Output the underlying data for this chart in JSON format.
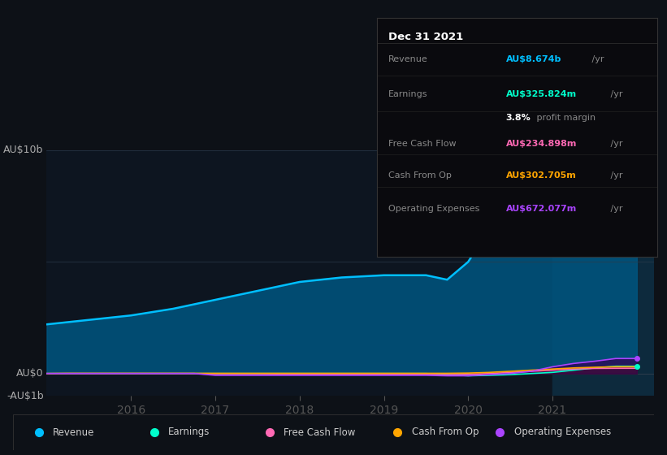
{
  "bg_color": "#0d1117",
  "chart_bg": "#0d1520",
  "grid_color": "#2a3a4a",
  "x_years": [
    2015.0,
    2015.25,
    2015.5,
    2015.75,
    2016.0,
    2016.25,
    2016.5,
    2016.75,
    2017.0,
    2017.25,
    2017.5,
    2017.75,
    2018.0,
    2018.25,
    2018.5,
    2018.75,
    2019.0,
    2019.25,
    2019.5,
    2019.75,
    2020.0,
    2020.25,
    2020.5,
    2020.75,
    2021.0,
    2021.25,
    2021.5,
    2021.75,
    2022.0
  ],
  "revenue": [
    2.2,
    2.3,
    2.4,
    2.5,
    2.6,
    2.75,
    2.9,
    3.1,
    3.3,
    3.5,
    3.7,
    3.9,
    4.1,
    4.2,
    4.3,
    4.35,
    4.4,
    4.4,
    4.4,
    4.2,
    5.0,
    6.5,
    7.8,
    8.8,
    9.2,
    9.0,
    8.8,
    8.674,
    8.674
  ],
  "earnings": [
    0.0,
    0.0,
    0.0,
    0.0,
    0.0,
    0.0,
    0.0,
    0.0,
    0.0,
    0.0,
    0.0,
    0.0,
    0.0,
    0.0,
    0.0,
    0.0,
    0.0,
    0.0,
    0.0,
    -0.05,
    -0.1,
    -0.08,
    -0.05,
    0.0,
    0.05,
    0.15,
    0.25,
    0.326,
    0.326
  ],
  "free_cash_flow": [
    0.0,
    0.0,
    0.0,
    0.0,
    0.0,
    0.0,
    0.0,
    0.0,
    -0.05,
    -0.05,
    -0.05,
    -0.04,
    -0.04,
    -0.04,
    -0.04,
    -0.04,
    -0.04,
    -0.04,
    -0.04,
    -0.05,
    -0.04,
    0.0,
    0.05,
    0.1,
    0.15,
    0.2,
    0.23,
    0.235,
    0.235
  ],
  "cash_from_op": [
    0.0,
    0.01,
    0.01,
    0.01,
    0.01,
    0.01,
    0.01,
    0.01,
    0.01,
    0.01,
    0.01,
    0.01,
    0.01,
    0.01,
    0.01,
    0.01,
    0.01,
    0.01,
    0.01,
    0.01,
    0.02,
    0.05,
    0.1,
    0.15,
    0.2,
    0.25,
    0.28,
    0.303,
    0.303
  ],
  "operating_expenses": [
    0.0,
    0.0,
    0.0,
    0.0,
    0.0,
    0.0,
    0.0,
    0.0,
    -0.08,
    -0.08,
    -0.08,
    -0.08,
    -0.08,
    -0.08,
    -0.08,
    -0.08,
    -0.08,
    -0.08,
    -0.08,
    -0.1,
    -0.1,
    -0.05,
    0.0,
    0.1,
    0.3,
    0.45,
    0.55,
    0.672,
    0.672
  ],
  "revenue_color": "#00bfff",
  "earnings_color": "#00ffcc",
  "fcf_color": "#ff69b4",
  "cashop_color": "#ffa500",
  "opex_color": "#aa44ff",
  "revenue_fill": "#005580",
  "earnings_fill": "#004433",
  "fcf_fill": "#551133",
  "cashop_fill": "#553300",
  "opex_fill": "#330055",
  "xlim": [
    2015.0,
    2022.2
  ],
  "ylim": [
    -1.0,
    10.0
  ],
  "xtick_labels": [
    "2016",
    "2017",
    "2018",
    "2019",
    "2020",
    "2021"
  ],
  "xtick_positions": [
    2016,
    2017,
    2018,
    2019,
    2020,
    2021
  ],
  "highlight_x_start": 2021.0,
  "highlight_x_end": 2022.2,
  "tooltip": {
    "date": "Dec 31 2021",
    "rows": [
      {
        "label": "Revenue",
        "value": "AU$8.674b",
        "unit": " /yr",
        "color": "#00bfff",
        "sub": null
      },
      {
        "label": "Earnings",
        "value": "AU$325.824m",
        "unit": " /yr",
        "color": "#00ffcc",
        "sub": {
          "bold": "3.8%",
          "rest": " profit margin"
        }
      },
      {
        "label": "Free Cash Flow",
        "value": "AU$234.898m",
        "unit": " /yr",
        "color": "#ff69b4",
        "sub": null
      },
      {
        "label": "Cash From Op",
        "value": "AU$302.705m",
        "unit": " /yr",
        "color": "#ffa500",
        "sub": null
      },
      {
        "label": "Operating Expenses",
        "value": "AU$672.077m",
        "unit": " /yr",
        "color": "#aa44ff",
        "sub": null
      }
    ]
  },
  "legend_items": [
    {
      "label": "Revenue",
      "color": "#00bfff"
    },
    {
      "label": "Earnings",
      "color": "#00ffcc"
    },
    {
      "label": "Free Cash Flow",
      "color": "#ff69b4"
    },
    {
      "label": "Cash From Op",
      "color": "#ffa500"
    },
    {
      "label": "Operating Expenses",
      "color": "#aa44ff"
    }
  ]
}
